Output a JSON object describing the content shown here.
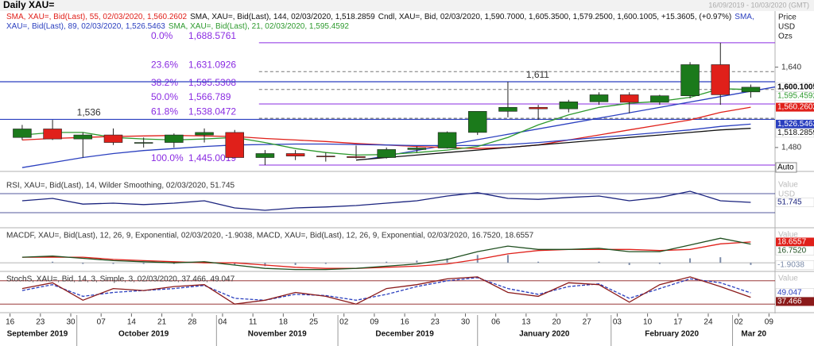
{
  "chart_data": [
    {
      "type": "candlestick",
      "title": "Daily XAU=",
      "subtitle": "16/09/2019 - 10/03/2020 (GMT)",
      "name": "Cndl, XAU=, Bid, 02/03/2020, 1,590.7000, 1,605.3500, 1,579.2500, 1,600.1005, +15.3605, (+0.97%)",
      "last_label": "1,600.1005",
      "up_color": "#1b7a1b",
      "down_color": "#e0201a",
      "xlim": [
        "2019-09-13",
        "2020-03-10"
      ],
      "x": [
        "2019-09-16",
        "2019-09-23",
        "2019-09-30",
        "2019-10-07",
        "2019-10-14",
        "2019-10-21",
        "2019-10-28",
        "2019-11-04",
        "2019-11-11",
        "2019-11-18",
        "2019-11-25",
        "2019-12-02",
        "2019-12-09",
        "2019-12-16",
        "2019-12-23",
        "2019-12-30",
        "2020-01-06",
        "2020-01-13",
        "2020-01-20",
        "2020-01-27",
        "2020-02-03",
        "2020-02-10",
        "2020-02-17",
        "2020-02-24",
        "2020-03-02"
      ],
      "open": [
        1500,
        1517,
        1497,
        1505,
        1490,
        1490,
        1505,
        1510,
        1460,
        1468,
        1463,
        1462,
        1460,
        1476,
        1479,
        1510,
        1552,
        1560,
        1557,
        1571,
        1585,
        1570,
        1583,
        1645,
        1590.7
      ],
      "high": [
        1525,
        1535,
        1510,
        1518,
        1500,
        1508,
        1518,
        1515,
        1475,
        1475,
        1470,
        1484,
        1480,
        1482,
        1512,
        1550,
        1611,
        1565,
        1575,
        1590,
        1590,
        1585,
        1650,
        1688.5761,
        1605.35
      ],
      "low": [
        1495,
        1495,
        1460,
        1485,
        1480,
        1480,
        1490,
        1460,
        1445.0019,
        1455,
        1452,
        1458,
        1458,
        1470,
        1478,
        1505,
        1540,
        1535,
        1550,
        1565,
        1548,
        1565,
        1578,
        1565,
        1579.25
      ],
      "close": [
        1517,
        1497,
        1505,
        1490,
        1490,
        1505,
        1510,
        1460,
        1468,
        1463,
        1462,
        1460,
        1476,
        1479,
        1510,
        1552,
        1560,
        1557,
        1571,
        1585,
        1570,
        1583,
        1645,
        1585,
        1600.1005
      ],
      "series": [
        {
          "name": "SMA, XAU=, Bid(Last), 55, 02/03/2020, 1,560.2602",
          "color": "#e0201a",
          "label_box": true,
          "last_label": "1,560.2602",
          "values": [
            1495,
            1498,
            1500,
            1502,
            1503,
            1504,
            1503,
            1502,
            1498,
            1495,
            1492,
            1488,
            1485,
            1482,
            1480,
            1478,
            1480,
            1485,
            1495,
            1505,
            1515,
            1525,
            1535,
            1550,
            1560.2602
          ]
        },
        {
          "name": "SMA, XAU=, Bid(Last), 144, 02/03/2020, 1,518.2859",
          "color": "#111111",
          "label_box": false,
          "last_label": "1,518.2859",
          "values": [
            null,
            null,
            null,
            null,
            null,
            null,
            null,
            null,
            null,
            null,
            null,
            1455,
            1460,
            1465,
            1470,
            1475,
            1480,
            1485,
            1490,
            1495,
            1500,
            1505,
            1510,
            1515,
            1518.2859
          ]
        },
        {
          "name": "SMA, XAU=, Bid(Last), 89, 02/03/2020, 1,526.5463",
          "color": "#2a3fbf",
          "label_box": true,
          "last_label": "1,526.5463",
          "values": [
            1440,
            1450,
            1460,
            1468,
            1474,
            1478,
            1482,
            1485,
            1486,
            1487,
            1487,
            1486,
            1485,
            1484,
            1484,
            1484,
            1486,
            1490,
            1495,
            1500,
            1505,
            1510,
            1515,
            1522,
            1526.5463
          ]
        },
        {
          "name": "SMA, XAU=, Bid(Last), 21, 02/03/2020, 1,595.4592",
          "color": "#2e9a2e",
          "label_box": false,
          "last_label": "1,595.4592",
          "values": [
            1505,
            1510,
            1510,
            1500,
            1497,
            1495,
            1497,
            1500,
            1490,
            1478,
            1470,
            1465,
            1466,
            1470,
            1475,
            1482,
            1500,
            1525,
            1545,
            1560,
            1568,
            1572,
            1580,
            1597,
            1595.4592
          ]
        }
      ],
      "fib_from": "2019-11-12",
      "fib_levels": [
        {
          "pct": "0.0%",
          "price": {
            "value": 1688.5761,
            "label": "1,688.5761"
          },
          "color": "#8a2be2",
          "dash": false
        },
        {
          "pct": "23.6%",
          "price": {
            "value": 1631.0926,
            "label": "1,631.0926"
          },
          "color": "#777777",
          "dash": true
        },
        {
          "pct": "38.2%",
          "price": {
            "value": 1595.5308,
            "label": "1,595.5308"
          },
          "color": "#777777",
          "dash": true
        },
        {
          "pct": "50.0%",
          "price": {
            "value": 1566.789,
            "label": "1,566.789"
          },
          "color": "#8a2be2",
          "dash": false
        },
        {
          "pct": "61.8%",
          "price": {
            "value": 1538.0472,
            "label": "1,538.0472"
          },
          "color": "#555555",
          "dash": true
        },
        {
          "pct": "100.0%",
          "price": {
            "value": 1445.0019,
            "label": "1,445.0019"
          },
          "color": "#8a2be2",
          "dash": false
        }
      ],
      "hlines": [
        {
          "value": 1611,
          "label": "1,611",
          "at": "2020-01-13"
        },
        {
          "value": 1536,
          "label": "1,536",
          "at": "2019-10-01"
        }
      ],
      "hline_color": "#2a3fbf",
      "trendline": {
        "x": [
          "2019-12-04",
          "2020-03-02"
        ],
        "values": [
          1457,
          1592
        ],
        "color": "#2a3fbf"
      },
      "ylim": [
        1434,
        1750
      ],
      "yticks": [
        {
          "value": 1640,
          "label": "1,640"
        },
        {
          "value": 1480,
          "label": "1,480"
        }
      ],
      "axis_labels": [
        "Price",
        "USD",
        "Ozs"
      ],
      "scale_button": "Auto",
      "xticks": [
        {
          "value": "2019-09-16",
          "label": "16"
        },
        {
          "value": "2019-09-23",
          "label": "23"
        },
        {
          "value": "2019-09-30",
          "label": "30"
        },
        {
          "value": "2019-10-07",
          "label": "07"
        },
        {
          "value": "2019-10-14",
          "label": "14"
        },
        {
          "value": "2019-10-21",
          "label": "21"
        },
        {
          "value": "2019-10-28",
          "label": "28"
        },
        {
          "value": "2019-11-04",
          "label": "04"
        },
        {
          "value": "2019-11-11",
          "label": "11"
        },
        {
          "value": "2019-11-18",
          "label": "18"
        },
        {
          "value": "2019-11-25",
          "label": "25"
        },
        {
          "value": "2019-12-02",
          "label": "02"
        },
        {
          "value": "2019-12-09",
          "label": "09"
        },
        {
          "value": "2019-12-16",
          "label": "16"
        },
        {
          "value": "2019-12-23",
          "label": "23"
        },
        {
          "value": "2019-12-30",
          "label": "30"
        },
        {
          "value": "2020-01-06",
          "label": "06"
        },
        {
          "value": "2020-01-13",
          "label": "13"
        },
        {
          "value": "2020-01-20",
          "label": "20"
        },
        {
          "value": "2020-01-27",
          "label": "27"
        },
        {
          "value": "2020-02-03",
          "label": "03"
        },
        {
          "value": "2020-02-10",
          "label": "10"
        },
        {
          "value": "2020-02-17",
          "label": "17"
        },
        {
          "value": "2020-02-24",
          "label": "24"
        },
        {
          "value": "2020-03-02",
          "label": "02"
        },
        {
          "value": "2020-03-09",
          "label": "09"
        }
      ],
      "xgroups": [
        {
          "value": "2019-09",
          "label": "September 2019"
        },
        {
          "value": "2019-10",
          "label": "October 2019"
        },
        {
          "value": "2019-11",
          "label": "November 2019"
        },
        {
          "value": "2019-12",
          "label": "December 2019"
        },
        {
          "value": "2020-01",
          "label": "January 2020"
        },
        {
          "value": "2020-02",
          "label": "February 2020"
        },
        {
          "value": "2020-03",
          "label": "Mar 20"
        }
      ]
    },
    {
      "type": "line",
      "title": "RSI, XAU=, Bid(Last), 14, Wilder Smoothing, 02/03/2020, 51.745",
      "x": [
        "2019-09-16",
        "2019-09-23",
        "2019-09-30",
        "2019-10-07",
        "2019-10-14",
        "2019-10-21",
        "2019-10-28",
        "2019-11-04",
        "2019-11-11",
        "2019-11-18",
        "2019-11-25",
        "2019-12-02",
        "2019-12-09",
        "2019-12-16",
        "2019-12-23",
        "2019-12-30",
        "2020-01-06",
        "2020-01-13",
        "2020-01-20",
        "2020-01-27",
        "2020-02-03",
        "2020-02-10",
        "2020-02-17",
        "2020-02-24",
        "2020-03-02"
      ],
      "ylim": [
        0,
        100
      ],
      "levels": [
        70,
        30
      ],
      "level_color": "#1a237e",
      "axis_labels": [
        "Value",
        "USD"
      ],
      "series": [
        {
          "color": "#1a237e",
          "label_box": false,
          "last_label": "51.745",
          "values": [
            55,
            60,
            48,
            50,
            47,
            50,
            55,
            40,
            35,
            40,
            42,
            45,
            50,
            55,
            65,
            72,
            60,
            58,
            62,
            65,
            55,
            62,
            75,
            55,
            51.745
          ]
        }
      ]
    },
    {
      "type": "line",
      "title": "MACDF, XAU=, Bid(Last), 12, 26, 9, Exponential, 02/03/2020, -1.9038, MACD, XAU=, Bid(Last), 12, 26, 9, Exponential, 02/03/2020, 16.7520, 18.6557",
      "x": [
        "2019-09-16",
        "2019-09-23",
        "2019-09-30",
        "2019-10-07",
        "2019-10-14",
        "2019-10-21",
        "2019-10-28",
        "2019-11-04",
        "2019-11-11",
        "2019-11-18",
        "2019-11-25",
        "2019-12-02",
        "2019-12-09",
        "2019-12-16",
        "2019-12-23",
        "2019-12-30",
        "2020-01-06",
        "2020-01-13",
        "2020-01-20",
        "2020-01-27",
        "2020-02-03",
        "2020-02-10",
        "2020-02-17",
        "2020-02-24",
        "2020-03-02"
      ],
      "ylim": [
        -7,
        30
      ],
      "levels": [
        0
      ],
      "level_color": "#999999",
      "axis_labels": [
        "Value"
      ],
      "series": [
        {
          "kind": "bar",
          "color": "#7a8aa8",
          "label_box": false,
          "last_label": "-1.9038",
          "values": [
            0,
            1,
            -1,
            -1,
            -1,
            -1,
            1,
            -2,
            -3,
            -2,
            -1,
            0,
            1,
            2,
            4,
            7,
            7,
            1,
            0,
            1,
            -2,
            -1,
            4,
            5,
            -1.9038
          ]
        },
        {
          "color": "#e0201a",
          "label_box": true,
          "last_label": "18.6557",
          "values": [
            5,
            5,
            5,
            3,
            2,
            1,
            0,
            0,
            -2,
            -4,
            -5,
            -5,
            -4,
            -3,
            -1,
            3,
            8,
            11,
            12,
            12,
            12,
            11,
            12,
            17,
            18.6557
          ]
        },
        {
          "color": "#1f4f1f",
          "label_box": false,
          "last_label": "16.7520",
          "values": [
            5,
            6,
            4,
            2,
            1,
            0,
            1,
            -2,
            -5,
            -6,
            -6,
            -5,
            -3,
            -1,
            3,
            10,
            15,
            12,
            12,
            13,
            10,
            10,
            16,
            22,
            16.752
          ]
        }
      ]
    },
    {
      "type": "line",
      "title": "StochS, XAU=, Bid, 14, 3, Simple, 3, 02/03/2020, 37.466, 49.047",
      "x": [
        "2019-09-16",
        "2019-09-23",
        "2019-09-30",
        "2019-10-07",
        "2019-10-14",
        "2019-10-21",
        "2019-10-28",
        "2019-11-04",
        "2019-11-11",
        "2019-11-18",
        "2019-11-25",
        "2019-12-02",
        "2019-12-09",
        "2019-12-16",
        "2019-12-23",
        "2019-12-30",
        "2020-01-06",
        "2020-01-13",
        "2020-01-20",
        "2020-01-27",
        "2020-02-03",
        "2020-02-10",
        "2020-02-17",
        "2020-02-24",
        "2020-03-02"
      ],
      "ylim": [
        0,
        100
      ],
      "levels": [
        80,
        20
      ],
      "level_color": "#8b1a1a",
      "axis_labels": [
        "Value"
      ],
      "series": [
        {
          "color": "#2a3fbf",
          "dash": true,
          "label_box": false,
          "last_label": "49.047",
          "values": [
            55,
            70,
            40,
            50,
            55,
            60,
            68,
            35,
            30,
            45,
            42,
            30,
            45,
            65,
            80,
            88,
            60,
            45,
            65,
            72,
            35,
            60,
            85,
            75,
            49.047
          ]
        },
        {
          "color": "#8b1a1a",
          "label_box": true,
          "last_label": "37.466",
          "values": [
            60,
            75,
            30,
            60,
            55,
            65,
            70,
            20,
            30,
            50,
            40,
            20,
            60,
            70,
            85,
            90,
            50,
            40,
            75,
            70,
            25,
            70,
            90,
            65,
            37.466
          ]
        }
      ]
    }
  ]
}
